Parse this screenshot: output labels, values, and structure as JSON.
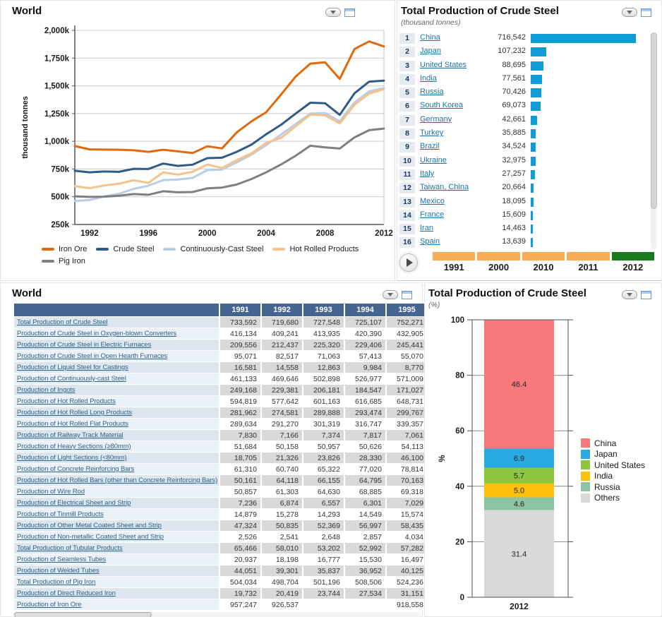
{
  "line_panel": {
    "title": "World"
  },
  "ranking_panel": {
    "title": "Total Production of Crude Steel",
    "subtitle": "(thousand tonnes)"
  },
  "table_panel": {
    "title": "World",
    "columns": [
      "1991",
      "1992",
      "1993",
      "1994",
      "1995"
    ],
    "rows": [
      {
        "label": "Total Production of Crude Steel",
        "values": [
          "733,592",
          "719,680",
          "727,548",
          "725,107",
          "752,271"
        ]
      },
      {
        "label": "Production of Crude Steel in Oxygen-blown Converters",
        "values": [
          "416,134",
          "409,241",
          "413,935",
          "420,390",
          "432,905"
        ]
      },
      {
        "label": "Production of Crude Steel in Electric Furnaces",
        "values": [
          "209,556",
          "212,437",
          "225,320",
          "229,406",
          "245,441"
        ]
      },
      {
        "label": "Production of Crude Steel in Open Hearth Furnaces",
        "values": [
          "95,071",
          "82,517",
          "71,063",
          "57,413",
          "55,070"
        ]
      },
      {
        "label": "Production of Liquid Steel for Castings",
        "values": [
          "16,581",
          "14,558",
          "12,863",
          "9,984",
          "8,770"
        ]
      },
      {
        "label": "Production of Continuously-cast Steel",
        "values": [
          "461,133",
          "469,646",
          "502,898",
          "526,977",
          "571,009"
        ]
      },
      {
        "label": "Production of Ingots",
        "values": [
          "249,168",
          "229,381",
          "206,181",
          "184,547",
          "171,027"
        ]
      },
      {
        "label": "Production of Hot Rolled Products",
        "values": [
          "594,819",
          "577,642",
          "601,163",
          "616,685",
          "648,731"
        ]
      },
      {
        "label": "Production of Hot Rolled Long Products",
        "values": [
          "281,962",
          "274,581",
          "289,888",
          "293,474",
          "299,767"
        ]
      },
      {
        "label": "Production of Hot Rolled Flat Products",
        "values": [
          "289,634",
          "291,270",
          "301,319",
          "316,747",
          "339,357"
        ]
      },
      {
        "label": "Production of Railway Track Material",
        "values": [
          "7,830",
          "7,166",
          "7,374",
          "7,817",
          "7,061"
        ]
      },
      {
        "label": "Production of Heavy Sections (≥80mm)",
        "values": [
          "51,684",
          "50,158",
          "50,957",
          "50,626",
          "54,113"
        ]
      },
      {
        "label": "Production of Light Sections (<80mm)",
        "values": [
          "18,705",
          "21,326",
          "23,826",
          "28,330",
          "46,100"
        ]
      },
      {
        "label": "Production of Concrete Reinforcing Bars",
        "values": [
          "61,310",
          "60,740",
          "65,322",
          "77,020",
          "78,814"
        ]
      },
      {
        "label": "Production of Hot Rolled Bars (other than Concrete Reinforcing Bars)",
        "values": [
          "50,161",
          "64,118",
          "66,155",
          "64,795",
          "70,163"
        ]
      },
      {
        "label": "Production of Wire Rod",
        "values": [
          "50,857",
          "61,303",
          "64,630",
          "68,885",
          "69,318"
        ]
      },
      {
        "label": "Production of Electrical Sheet and Strip",
        "values": [
          "7,236",
          "6,874",
          "6,557",
          "6,301",
          "7,029"
        ]
      },
      {
        "label": "Production of Tinmill Products",
        "values": [
          "14,879",
          "15,278",
          "14,293",
          "14,549",
          "15,574"
        ]
      },
      {
        "label": "Production of Other Metal Coated Sheet and Strip",
        "values": [
          "47,324",
          "50,835",
          "52,369",
          "56,997",
          "58,435"
        ]
      },
      {
        "label": "Production of Non-metallic Coated Sheet and Strip",
        "values": [
          "2,526",
          "2,541",
          "2,648",
          "2,857",
          "4,034"
        ]
      },
      {
        "label": "Total Production of Tubular Products",
        "values": [
          "65,466",
          "58,010",
          "53,202",
          "52,992",
          "57,282"
        ]
      },
      {
        "label": "Production of Seamless Tubes",
        "values": [
          "20,937",
          "18,198",
          "16,777",
          "15,530",
          "16,497"
        ]
      },
      {
        "label": "Production of Welded Tubes",
        "values": [
          "44,051",
          "39,301",
          "35,837",
          "36,952",
          "40,125"
        ]
      },
      {
        "label": "Total Production of Pig Iron",
        "values": [
          "504,034",
          "498,704",
          "501,196",
          "508,506",
          "524,236"
        ]
      },
      {
        "label": "Production of Direct Reduced Iron",
        "values": [
          "19,732",
          "20,419",
          "23,744",
          "27,534",
          "31,151"
        ]
      },
      {
        "label": "Production of Iron Ore",
        "values": [
          "957,247",
          "926,537",
          "",
          "",
          "918,558"
        ]
      }
    ]
  },
  "stacked_panel": {
    "title": "Total Production of Crude Steel",
    "subtitle": "(%)"
  },
  "timeline": {
    "years": [
      "1991",
      "2000",
      "2010",
      "2011",
      "2012"
    ],
    "active_year": "2012",
    "segment_color": "#F9AC54",
    "active_segment_color": "#187A1E"
  },
  "chart_data": [
    {
      "type": "line",
      "title": "World",
      "ylabel": "thousand tonnes",
      "ylim": [
        250,
        2000
      ],
      "ytick_values": [
        250,
        500,
        750,
        1000,
        1250,
        1500,
        1750,
        2000
      ],
      "ytick_labels": [
        "250k",
        "500k",
        "750k",
        "1,000k",
        "1,250k",
        "1,500k",
        "1,750k",
        "2,000k"
      ],
      "x": [
        1991,
        1992,
        1993,
        1994,
        1995,
        1996,
        1997,
        1998,
        1999,
        2000,
        2001,
        2002,
        2003,
        2004,
        2005,
        2006,
        2007,
        2008,
        2009,
        2010,
        2011,
        2012
      ],
      "xticks": [
        1992,
        1996,
        2000,
        2004,
        2008,
        2012
      ],
      "grid": true,
      "legend_position": "bottom",
      "series": [
        {
          "name": "Iron Ore",
          "color": "#E0690B",
          "values": [
            957,
            927,
            925,
            924,
            919,
            905,
            924,
            909,
            894,
            955,
            936,
            1080,
            1180,
            1262,
            1420,
            1583,
            1700,
            1712,
            1562,
            1832,
            1900,
            1855
          ]
        },
        {
          "name": "Crude Steel",
          "color": "#2E5C87",
          "values": [
            734,
            720,
            728,
            725,
            752,
            750,
            799,
            778,
            789,
            848,
            852,
            905,
            970,
            1063,
            1148,
            1250,
            1348,
            1343,
            1238,
            1433,
            1538,
            1547
          ]
        },
        {
          "name": "Continuously-Cast Steel",
          "color": "#B9CDE5",
          "values": [
            461,
            470,
            503,
            527,
            571,
            600,
            650,
            655,
            670,
            740,
            745,
            810,
            880,
            965,
            1060,
            1155,
            1250,
            1255,
            1180,
            1350,
            1450,
            1480
          ]
        },
        {
          "name": "Hot Rolled Products",
          "color": "#F6C28B",
          "values": [
            595,
            578,
            601,
            617,
            649,
            625,
            720,
            700,
            725,
            790,
            760,
            830,
            890,
            985,
            1030,
            1135,
            1240,
            1235,
            1160,
            1330,
            1430,
            1470
          ]
        },
        {
          "name": "Pig Iron",
          "color": "#7F7F7F",
          "values": [
            504,
            499,
            501,
            509,
            524,
            518,
            550,
            540,
            543,
            576,
            583,
            610,
            660,
            720,
            790,
            870,
            960,
            945,
            935,
            1035,
            1100,
            1115
          ]
        }
      ]
    },
    {
      "type": "bar",
      "orientation": "horizontal",
      "title": "Total Production of Crude Steel",
      "unit_label": "(thousand tonnes)",
      "bar_color": "#119BD7",
      "max_value": 716542,
      "items": [
        {
          "rank": "1",
          "label": "China",
          "value_label": "716,542",
          "value": 716542
        },
        {
          "rank": "2",
          "label": "Japan",
          "value_label": "107,232",
          "value": 107232
        },
        {
          "rank": "3",
          "label": "United States",
          "value_label": "88,695",
          "value": 88695
        },
        {
          "rank": "4",
          "label": "India",
          "value_label": "77,561",
          "value": 77561
        },
        {
          "rank": "5",
          "label": "Russia",
          "value_label": "70,426",
          "value": 70426
        },
        {
          "rank": "6",
          "label": "South Korea",
          "value_label": "69,073",
          "value": 69073
        },
        {
          "rank": "7",
          "label": "Germany",
          "value_label": "42,661",
          "value": 42661
        },
        {
          "rank": "8",
          "label": "Turkey",
          "value_label": "35,885",
          "value": 35885
        },
        {
          "rank": "9",
          "label": "Brazil",
          "value_label": "34,524",
          "value": 34524
        },
        {
          "rank": "10",
          "label": "Ukraine",
          "value_label": "32,975",
          "value": 32975
        },
        {
          "rank": "11",
          "label": "Italy",
          "value_label": "27,257",
          "value": 27257
        },
        {
          "rank": "12",
          "label": "Taiwan, China",
          "value_label": "20,664",
          "value": 20664
        },
        {
          "rank": "13",
          "label": "Mexico",
          "value_label": "18,095",
          "value": 18095
        },
        {
          "rank": "14",
          "label": "France",
          "value_label": "15,609",
          "value": 15609
        },
        {
          "rank": "15",
          "label": "Iran",
          "value_label": "14,463",
          "value": 14463
        },
        {
          "rank": "16",
          "label": "Spain",
          "value_label": "13,639",
          "value": 13639
        }
      ]
    },
    {
      "type": "bar",
      "subtype": "stacked-percent",
      "title": "Total Production of Crude Steel",
      "unit_label": "(%)",
      "categories": [
        "2012"
      ],
      "ylabel": "%",
      "ylim": [
        0,
        100
      ],
      "yticks": [
        0,
        20,
        40,
        60,
        80,
        100
      ],
      "legend_position": "right",
      "series": [
        {
          "name": "China",
          "value": 46.4,
          "label": "46.4",
          "color": "#F8797B"
        },
        {
          "name": "Japan",
          "value": 6.9,
          "label": "6.9",
          "color": "#29ABE2"
        },
        {
          "name": "United States",
          "value": 5.7,
          "label": "5.7",
          "color": "#8DC63F"
        },
        {
          "name": "India",
          "value": 5.0,
          "label": "5.0",
          "color": "#FFC00C"
        },
        {
          "name": "Russia",
          "value": 4.6,
          "label": "4.6",
          "color": "#8BC4A5"
        },
        {
          "name": "Others",
          "value": 31.4,
          "label": "31.4",
          "color": "#D9D9D9"
        }
      ]
    }
  ]
}
